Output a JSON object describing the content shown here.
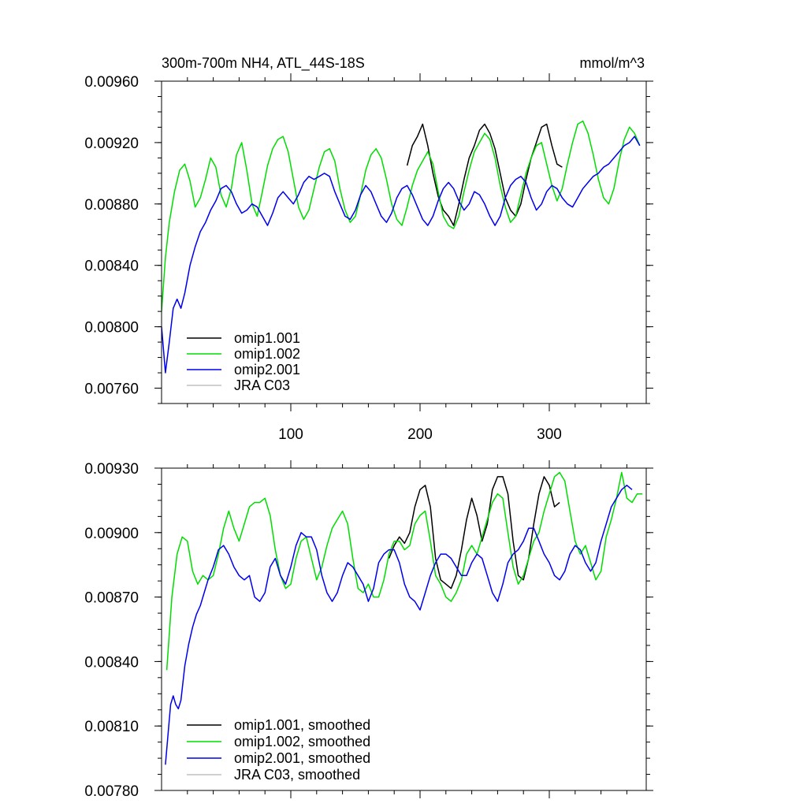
{
  "chart_data": [
    {
      "type": "line",
      "title": "300m-700m NH4, ATL_44S-18S",
      "units": "mmol/m^3",
      "xlim": [
        0,
        375
      ],
      "ylim": [
        0.0075,
        0.0096
      ],
      "xticks": [
        100,
        200,
        300
      ],
      "yticks": [
        0.0076,
        0.008,
        0.0084,
        0.0088,
        0.0092,
        0.0096
      ],
      "ytick_labels": [
        "0.00760",
        "0.00800",
        "0.00840",
        "0.00880",
        "0.00920",
        "0.00960"
      ],
      "xtick_labels": [
        "100",
        "200",
        "300"
      ],
      "legend_position": "bottom-left",
      "series": [
        {
          "name": "omip1.001",
          "color": "#000000",
          "x": [
            190,
            194,
            198,
            202,
            206,
            210,
            214,
            218,
            222,
            226,
            230,
            234,
            238,
            242,
            246,
            250,
            254,
            258,
            262,
            266,
            270,
            274,
            278,
            282,
            286,
            290,
            294,
            298,
            302,
            306,
            310
          ],
          "y": [
            0.00905,
            0.00918,
            0.00924,
            0.00932,
            0.00918,
            0.009,
            0.00885,
            0.00876,
            0.00872,
            0.00866,
            0.0088,
            0.00896,
            0.0091,
            0.00918,
            0.00928,
            0.00932,
            0.00926,
            0.00916,
            0.009,
            0.00884,
            0.00876,
            0.00872,
            0.0088,
            0.00896,
            0.0091,
            0.0092,
            0.0093,
            0.00932,
            0.00918,
            0.00906,
            0.00904
          ]
        },
        {
          "name": "omip1.002",
          "color": "#00dd00",
          "x": [
            0,
            3,
            6,
            10,
            14,
            18,
            22,
            26,
            30,
            34,
            38,
            42,
            46,
            50,
            54,
            58,
            62,
            66,
            70,
            74,
            78,
            82,
            86,
            90,
            94,
            98,
            102,
            106,
            110,
            114,
            118,
            122,
            126,
            130,
            134,
            138,
            142,
            146,
            150,
            154,
            158,
            162,
            166,
            170,
            174,
            178,
            182,
            186,
            190,
            194,
            198,
            202,
            206,
            210,
            214,
            218,
            222,
            226,
            230,
            234,
            238,
            242,
            246,
            250,
            254,
            258,
            262,
            266,
            270,
            274,
            278,
            282,
            286,
            290,
            294,
            298,
            302,
            306,
            310,
            314,
            318,
            322,
            326,
            330,
            334,
            338,
            342,
            346,
            350,
            354,
            358,
            362,
            366,
            370
          ],
          "y": [
            0.0081,
            0.00845,
            0.00868,
            0.00888,
            0.00902,
            0.00906,
            0.00895,
            0.00878,
            0.00884,
            0.00896,
            0.0091,
            0.00904,
            0.00886,
            0.00878,
            0.0089,
            0.00912,
            0.0092,
            0.00902,
            0.0088,
            0.00872,
            0.00888,
            0.00905,
            0.00916,
            0.00922,
            0.00924,
            0.00914,
            0.00896,
            0.00878,
            0.0087,
            0.00876,
            0.0089,
            0.00904,
            0.00914,
            0.00916,
            0.00908,
            0.0089,
            0.00876,
            0.00868,
            0.00872,
            0.00886,
            0.00902,
            0.00912,
            0.00916,
            0.0091,
            0.00896,
            0.0088,
            0.0087,
            0.00866,
            0.00878,
            0.00892,
            0.00902,
            0.00908,
            0.00914,
            0.00906,
            0.00888,
            0.00872,
            0.00866,
            0.00864,
            0.00872,
            0.00888,
            0.00902,
            0.00914,
            0.0092,
            0.00926,
            0.00922,
            0.0091,
            0.00892,
            0.00878,
            0.00868,
            0.00872,
            0.00886,
            0.009,
            0.0091,
            0.00918,
            0.0092,
            0.00906,
            0.00892,
            0.00882,
            0.0089,
            0.00906,
            0.0092,
            0.00932,
            0.00934,
            0.00926,
            0.00912,
            0.00896,
            0.00884,
            0.0088,
            0.0089,
            0.00908,
            0.00922,
            0.0093,
            0.00926,
            0.00918
          ]
        },
        {
          "name": "omip2.001",
          "color": "#0000ee",
          "x": [
            0,
            3,
            6,
            9,
            12,
            15,
            18,
            22,
            26,
            30,
            34,
            38,
            42,
            46,
            50,
            54,
            58,
            62,
            66,
            70,
            74,
            78,
            82,
            86,
            90,
            94,
            98,
            102,
            106,
            110,
            114,
            118,
            122,
            126,
            130,
            134,
            138,
            142,
            146,
            150,
            154,
            158,
            162,
            166,
            170,
            174,
            178,
            182,
            186,
            190,
            194,
            198,
            202,
            206,
            210,
            214,
            218,
            222,
            226,
            230,
            234,
            238,
            242,
            246,
            250,
            254,
            258,
            262,
            266,
            270,
            274,
            278,
            282,
            286,
            290,
            294,
            298,
            302,
            306,
            310,
            314,
            318,
            322,
            326,
            330,
            334,
            338,
            342,
            346,
            350,
            354,
            358,
            362,
            366,
            370
          ],
          "y": [
            0.008,
            0.0077,
            0.0079,
            0.00812,
            0.00818,
            0.00812,
            0.00822,
            0.0084,
            0.00852,
            0.00862,
            0.00868,
            0.00876,
            0.00882,
            0.0089,
            0.00892,
            0.00888,
            0.0088,
            0.00874,
            0.00876,
            0.0088,
            0.00878,
            0.00872,
            0.00866,
            0.00874,
            0.00884,
            0.00888,
            0.00884,
            0.0088,
            0.00886,
            0.00894,
            0.00898,
            0.00896,
            0.00898,
            0.009,
            0.00898,
            0.00888,
            0.0088,
            0.00872,
            0.0087,
            0.00876,
            0.00886,
            0.00892,
            0.00888,
            0.0088,
            0.00872,
            0.00868,
            0.00874,
            0.00884,
            0.0089,
            0.00892,
            0.00886,
            0.00878,
            0.0087,
            0.00866,
            0.00872,
            0.00882,
            0.0089,
            0.00894,
            0.0089,
            0.00882,
            0.00876,
            0.0088,
            0.00888,
            0.00886,
            0.0088,
            0.00872,
            0.00866,
            0.00872,
            0.00884,
            0.00892,
            0.00896,
            0.00898,
            0.00894,
            0.00884,
            0.00876,
            0.0088,
            0.00888,
            0.00892,
            0.0089,
            0.00884,
            0.0088,
            0.00878,
            0.00884,
            0.0089,
            0.00894,
            0.00898,
            0.009,
            0.00904,
            0.00906,
            0.0091,
            0.00914,
            0.00918,
            0.0092,
            0.00924,
            0.00918
          ]
        },
        {
          "name": "JRA C03",
          "color": "#c0c0c0",
          "x": [],
          "y": []
        }
      ]
    },
    {
      "type": "line",
      "title": "",
      "xlim": [
        0,
        375
      ],
      "ylim": [
        0.0078,
        0.0093
      ],
      "xticks": [
        100,
        200,
        300
      ],
      "yticks": [
        0.0078,
        0.0081,
        0.0084,
        0.0087,
        0.009,
        0.0093
      ],
      "ytick_labels": [
        "0.00780",
        "0.00810",
        "0.00840",
        "0.00870",
        "0.00900",
        "0.00930"
      ],
      "xtick_labels": [],
      "legend_position": "bottom-left",
      "series": [
        {
          "name": "omip1.001, smoothed",
          "color": "#000000",
          "x": [
            176,
            180,
            184,
            188,
            192,
            196,
            200,
            204,
            208,
            212,
            216,
            220,
            224,
            228,
            232,
            236,
            240,
            244,
            248,
            252,
            256,
            260,
            264,
            268,
            272,
            276,
            280,
            284,
            288,
            292,
            296,
            300,
            304,
            308
          ],
          "y": [
            0.00888,
            0.00894,
            0.00898,
            0.00895,
            0.009,
            0.00912,
            0.0092,
            0.00922,
            0.00912,
            0.00888,
            0.00878,
            0.00876,
            0.00874,
            0.0088,
            0.00892,
            0.00906,
            0.00916,
            0.00908,
            0.00896,
            0.00904,
            0.0092,
            0.00926,
            0.00926,
            0.00918,
            0.00896,
            0.0088,
            0.00878,
            0.00888,
            0.00904,
            0.00918,
            0.00926,
            0.00922,
            0.00912,
            0.00914
          ]
        },
        {
          "name": "omip1.002, smoothed",
          "color": "#00dd00",
          "x": [
            4,
            8,
            12,
            16,
            20,
            24,
            28,
            32,
            36,
            40,
            44,
            48,
            52,
            56,
            60,
            64,
            68,
            72,
            76,
            80,
            84,
            88,
            92,
            96,
            100,
            104,
            108,
            112,
            116,
            120,
            124,
            128,
            132,
            136,
            140,
            144,
            148,
            152,
            156,
            160,
            164,
            168,
            172,
            176,
            180,
            184,
            188,
            192,
            196,
            200,
            204,
            208,
            212,
            216,
            220,
            224,
            228,
            232,
            236,
            240,
            244,
            248,
            252,
            256,
            260,
            264,
            268,
            272,
            276,
            280,
            284,
            288,
            292,
            296,
            300,
            304,
            308,
            312,
            316,
            320,
            324,
            328,
            332,
            336,
            340,
            344,
            348,
            352,
            356,
            360,
            364,
            368,
            372
          ],
          "y": [
            0.00836,
            0.0087,
            0.0089,
            0.00898,
            0.00896,
            0.00882,
            0.00876,
            0.0088,
            0.00878,
            0.0088,
            0.0089,
            0.00902,
            0.0091,
            0.00902,
            0.00896,
            0.00904,
            0.00912,
            0.00914,
            0.00914,
            0.00916,
            0.00908,
            0.00892,
            0.0088,
            0.00874,
            0.00876,
            0.00888,
            0.00896,
            0.00898,
            0.00888,
            0.00878,
            0.00884,
            0.00894,
            0.00902,
            0.00906,
            0.0091,
            0.00904,
            0.00888,
            0.00874,
            0.00872,
            0.00876,
            0.0087,
            0.0087,
            0.00878,
            0.0089,
            0.00896,
            0.00896,
            0.00892,
            0.00894,
            0.00904,
            0.00908,
            0.0091,
            0.00896,
            0.0088,
            0.00876,
            0.0087,
            0.00868,
            0.00872,
            0.00878,
            0.0089,
            0.00894,
            0.0089,
            0.00898,
            0.00906,
            0.00914,
            0.00918,
            0.00916,
            0.009,
            0.00884,
            0.00876,
            0.0088,
            0.00888,
            0.00896,
            0.009,
            0.0091,
            0.00918,
            0.00926,
            0.00928,
            0.00924,
            0.0091,
            0.00896,
            0.0089,
            0.00894,
            0.00886,
            0.00878,
            0.00882,
            0.00898,
            0.00906,
            0.00916,
            0.00928,
            0.00916,
            0.00914,
            0.00918,
            0.00918
          ]
        },
        {
          "name": "omip2.001, smoothed",
          "color": "#0000ee",
          "x": [
            3,
            5,
            7,
            9,
            11,
            13,
            15,
            18,
            21,
            24,
            27,
            30,
            33,
            36,
            40,
            44,
            48,
            52,
            56,
            60,
            64,
            68,
            72,
            76,
            80,
            84,
            88,
            92,
            96,
            100,
            104,
            108,
            112,
            116,
            120,
            124,
            128,
            132,
            136,
            140,
            144,
            148,
            152,
            156,
            160,
            164,
            168,
            172,
            176,
            180,
            184,
            188,
            192,
            196,
            200,
            204,
            208,
            212,
            216,
            220,
            224,
            228,
            232,
            236,
            240,
            244,
            248,
            252,
            256,
            260,
            264,
            268,
            272,
            276,
            280,
            284,
            288,
            292,
            296,
            300,
            304,
            308,
            312,
            316,
            320,
            324,
            328,
            332,
            336,
            340,
            344,
            348,
            352,
            356,
            360,
            364
          ],
          "y": [
            0.00792,
            0.00806,
            0.0082,
            0.00824,
            0.0082,
            0.00818,
            0.00822,
            0.00838,
            0.00848,
            0.00856,
            0.00862,
            0.00866,
            0.00872,
            0.00878,
            0.00884,
            0.00892,
            0.00894,
            0.0089,
            0.00884,
            0.0088,
            0.00878,
            0.0088,
            0.0087,
            0.00868,
            0.00872,
            0.00884,
            0.00888,
            0.0088,
            0.00876,
            0.00884,
            0.00894,
            0.009,
            0.00898,
            0.00898,
            0.00892,
            0.0088,
            0.00872,
            0.00868,
            0.00872,
            0.0088,
            0.00886,
            0.00884,
            0.0088,
            0.00876,
            0.00868,
            0.00874,
            0.00886,
            0.0089,
            0.00892,
            0.00892,
            0.00886,
            0.00876,
            0.0087,
            0.00868,
            0.00864,
            0.00872,
            0.0088,
            0.00886,
            0.0089,
            0.0089,
            0.00888,
            0.00884,
            0.0088,
            0.0088,
            0.00886,
            0.0089,
            0.00888,
            0.0088,
            0.00872,
            0.00868,
            0.00876,
            0.00886,
            0.0089,
            0.00892,
            0.00896,
            0.00902,
            0.00902,
            0.00896,
            0.0089,
            0.00886,
            0.0088,
            0.00878,
            0.00882,
            0.0089,
            0.00894,
            0.00892,
            0.00886,
            0.00882,
            0.00886,
            0.00896,
            0.00904,
            0.00912,
            0.00916,
            0.0092,
            0.00922,
            0.0092
          ]
        },
        {
          "name": "JRA C03, smoothed",
          "color": "#c0c0c0",
          "x": [],
          "y": []
        }
      ]
    }
  ]
}
